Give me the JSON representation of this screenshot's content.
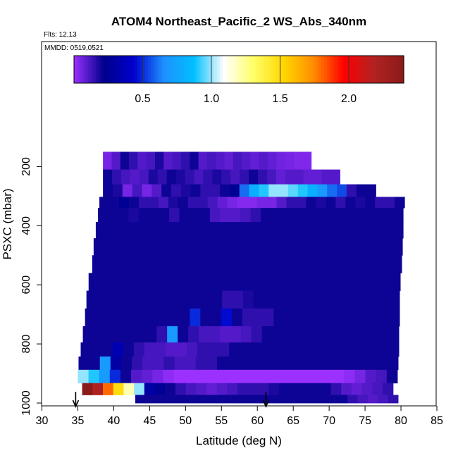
{
  "chart_data": {
    "type": "heatmap",
    "title": "ATOM4 Northeast_Pacific_2 WS_Abs_340nm",
    "annotations": {
      "flights": "Flts: 12,13",
      "dates": "MMDD: 0519,0521"
    },
    "xlabel": "Latitude (deg N)",
    "ylabel": "PSXC (mbar)",
    "xlim": [
      30,
      85
    ],
    "ylim": [
      1000,
      140
    ],
    "xticks": [
      "30",
      "35",
      "40",
      "45",
      "50",
      "55",
      "60",
      "65",
      "70",
      "75",
      "80",
      "85"
    ],
    "yticks": [
      "200",
      "400",
      "600",
      "800",
      "1000"
    ],
    "colorbar": {
      "range": [
        0,
        2.4
      ],
      "ticks": [
        "0.5",
        "1.0",
        "1.5",
        "2.0"
      ],
      "colors": [
        "#9b30ff",
        "#00008b",
        "#0000cd",
        "#1e90ff",
        "#00bfff",
        "#ffffff",
        "#ffff66",
        "#ffd700",
        "#ff8c00",
        "#ff0000",
        "#b22222",
        "#8b1a1a"
      ]
    },
    "layers": [
      {
        "p": 185,
        "lat": [
          38.5,
          67.5
        ],
        "values": [
          0.05,
          0.1,
          0.2,
          0.15,
          0.1,
          0.12,
          0.18,
          0.1,
          0.12,
          0.15,
          0.2,
          0.1,
          0.12,
          0.1,
          0.08,
          0.12,
          0.1,
          0.08,
          0.1,
          0.08,
          0.06,
          0.05,
          0.04,
          0.04
        ]
      },
      {
        "p": 235,
        "lat": [
          38.5,
          71.5
        ],
        "values": [
          0.2,
          0.15,
          0.12,
          0.1,
          0.12,
          0.18,
          0.15,
          0.2,
          0.18,
          0.15,
          0.12,
          0.15,
          0.18,
          0.15,
          0.12,
          0.15,
          0.2,
          0.15,
          0.12,
          0.08,
          0.1,
          0.1,
          0.08,
          0.08,
          0.1,
          0.1
        ]
      },
      {
        "p": 285,
        "lat": [
          38.5,
          76.5
        ],
        "values": [
          0.2,
          0.18,
          0.05,
          0.12,
          0.05,
          0.1,
          0.2,
          0.15,
          0.18,
          0.2,
          0.15,
          0.15,
          0.2,
          0.25,
          0.6,
          0.8,
          0.9,
          1.0,
          1.0,
          0.95,
          0.9,
          0.8,
          0.7,
          0.6,
          0.55,
          0.15,
          0.2,
          0.2
        ]
      },
      {
        "p": 320,
        "lat": [
          38.0,
          80.5
        ],
        "values": [
          0.2,
          0.2,
          0.25,
          0.2,
          0.15,
          0.15,
          0.12,
          0.18,
          0.2,
          0.15,
          0.15,
          0.12,
          0.08,
          0.05,
          0.03,
          0.03,
          0.05,
          0.05,
          0.1,
          0.15,
          0.15,
          0.2,
          0.18,
          0.2,
          0.15,
          0.2,
          0.18,
          0.2,
          0.15,
          0.15,
          0.2
        ]
      },
      {
        "p": 360,
        "lat": [
          37.8,
          80.3
        ],
        "values": [
          0.2,
          0.2,
          0.2,
          0.18,
          0.2,
          0.2,
          0.2,
          0.15,
          0.2,
          0.2,
          0.2,
          0.12,
          0.1,
          0.1,
          0.12,
          0.15,
          0.2,
          0.2,
          0.2,
          0.2,
          0.2,
          0.2,
          0.2,
          0.2,
          0.2,
          0.2,
          0.2,
          0.2,
          0.2,
          0.2
        ]
      },
      {
        "p": 415,
        "lat": [
          37.5,
          80.3
        ],
        "values": [
          0.2,
          0.2,
          0.2,
          0.2,
          0.2,
          0.2,
          0.2,
          0.2,
          0.2,
          0.2,
          0.2,
          0.2,
          0.2,
          0.2,
          0.2,
          0.2,
          0.2,
          0.2,
          0.2,
          0.2,
          0.2,
          0.2,
          0.2,
          0.2,
          0.2,
          0.2,
          0.2,
          0.2,
          0.2,
          0.2
        ]
      },
      {
        "p": 470,
        "lat": [
          37.2,
          80.2
        ],
        "values": [
          0.2,
          0.2,
          0.2,
          0.2,
          0.2,
          0.2,
          0.2,
          0.2,
          0.2,
          0.2,
          0.2,
          0.2,
          0.2,
          0.2,
          0.2,
          0.2,
          0.2,
          0.2,
          0.2,
          0.2,
          0.2,
          0.2,
          0.2,
          0.2,
          0.2,
          0.2,
          0.2,
          0.2,
          0.2,
          0.2
        ]
      },
      {
        "p": 530,
        "lat": [
          37.0,
          80.1
        ],
        "values": [
          0.2,
          0.2,
          0.2,
          0.2,
          0.2,
          0.2,
          0.2,
          0.2,
          0.2,
          0.2,
          0.2,
          0.2,
          0.2,
          0.2,
          0.2,
          0.2,
          0.2,
          0.2,
          0.2,
          0.2,
          0.2,
          0.2,
          0.2,
          0.2,
          0.2,
          0.2,
          0.2,
          0.2,
          0.2,
          0.2
        ]
      },
      {
        "p": 590,
        "lat": [
          36.5,
          79.9
        ],
        "values": [
          0.2,
          0.2,
          0.2,
          0.2,
          0.2,
          0.2,
          0.2,
          0.2,
          0.2,
          0.2,
          0.2,
          0.2,
          0.2,
          0.2,
          0.2,
          0.2,
          0.2,
          0.2,
          0.2,
          0.2,
          0.2,
          0.2,
          0.2,
          0.2,
          0.2,
          0.2,
          0.2,
          0.2,
          0.2,
          0.2
        ]
      },
      {
        "p": 650,
        "lat": [
          36.2,
          79.8
        ],
        "values": [
          0.2,
          0.2,
          0.2,
          0.2,
          0.2,
          0.2,
          0.2,
          0.2,
          0.2,
          0.2,
          0.2,
          0.2,
          0.2,
          0.15,
          0.15,
          0.18,
          0.2,
          0.2,
          0.2,
          0.2,
          0.2,
          0.2,
          0.2,
          0.2,
          0.2,
          0.2,
          0.2,
          0.2,
          0.2,
          0.2
        ]
      },
      {
        "p": 710,
        "lat": [
          36.0,
          79.8
        ],
        "values": [
          0.2,
          0.2,
          0.2,
          0.2,
          0.2,
          0.2,
          0.2,
          0.2,
          0.2,
          0.2,
          0.5,
          0.2,
          0.2,
          0.45,
          0.2,
          0.15,
          0.15,
          0.15,
          0.2,
          0.2,
          0.2,
          0.2,
          0.2,
          0.2,
          0.2,
          0.2,
          0.2,
          0.2,
          0.2,
          0.2
        ]
      },
      {
        "p": 770,
        "lat": [
          35.7,
          79.7
        ],
        "values": [
          0.2,
          0.2,
          0.2,
          0.2,
          0.2,
          0.2,
          0.2,
          0.15,
          0.7,
          0.2,
          0.15,
          0.12,
          0.12,
          0.1,
          0.1,
          0.12,
          0.15,
          0.2,
          0.2,
          0.2,
          0.2,
          0.2,
          0.2,
          0.2,
          0.2,
          0.2,
          0.2,
          0.2,
          0.2,
          0.2
        ]
      },
      {
        "p": 820,
        "lat": [
          35.4,
          79.7
        ],
        "values": [
          0.2,
          0.2,
          0.2,
          0.35,
          0.2,
          0.15,
          0.12,
          0.12,
          0.1,
          0.1,
          0.12,
          0.15,
          0.15,
          0.15,
          0.2,
          0.2,
          0.2,
          0.2,
          0.2,
          0.2,
          0.2,
          0.2,
          0.2,
          0.2,
          0.2,
          0.2,
          0.2,
          0.2,
          0.2,
          0.2
        ]
      },
      {
        "p": 865,
        "lat": [
          35.1,
          79.6
        ],
        "values": [
          0.2,
          0.2,
          0.7,
          0.3,
          0.2,
          0.15,
          0.12,
          0.12,
          0.15,
          0.12,
          0.12,
          0.15,
          0.15,
          0.2,
          0.2,
          0.2,
          0.2,
          0.2,
          0.2,
          0.2,
          0.2,
          0.2,
          0.2,
          0.2,
          0.2,
          0.2,
          0.2,
          0.2,
          0.2,
          0.2
        ]
      },
      {
        "p": 910,
        "lat": [
          35.0,
          79.5
        ],
        "values": [
          1.0,
          0.9,
          0.7,
          0.5,
          0.2,
          0.1,
          0.08,
          0.05,
          0.02,
          0.0,
          0.0,
          0.0,
          0.0,
          0.0,
          0.0,
          0.0,
          0.0,
          0.0,
          0.0,
          0.0,
          0.0,
          0.0,
          0.0,
          0.0,
          0.0,
          0.02,
          0.05,
          0.1,
          0.12,
          0.2
        ]
      },
      {
        "p": 955,
        "lat": [
          35.6,
          78.9
        ],
        "values": [
          2.4,
          2.2,
          1.8,
          1.5,
          1.2,
          1.0,
          0.3,
          0.25,
          0.2,
          0.15,
          0.12,
          0.1,
          0.08,
          0.1,
          0.12,
          0.15,
          0.15,
          0.15,
          0.18,
          0.2,
          0.2,
          0.2,
          0.2,
          0.2,
          0.15,
          0.1,
          0.08,
          0.1,
          0.12,
          0.15
        ]
      },
      {
        "p": 990,
        "lat": [
          43.0,
          79.6
        ],
        "values": [
          0.2,
          0.2,
          0.2,
          0.2,
          0.2,
          0.2,
          0.2,
          0.2,
          0.2,
          0.2,
          0.2,
          0.2,
          0.2,
          0.2,
          0.2,
          0.2,
          0.2,
          0.2,
          0.2,
          0.2,
          0.2,
          0.15,
          0.12,
          0.1,
          0.12,
          0.15
        ]
      }
    ],
    "arrows_lat": [
      34.7,
      61.2
    ]
  }
}
